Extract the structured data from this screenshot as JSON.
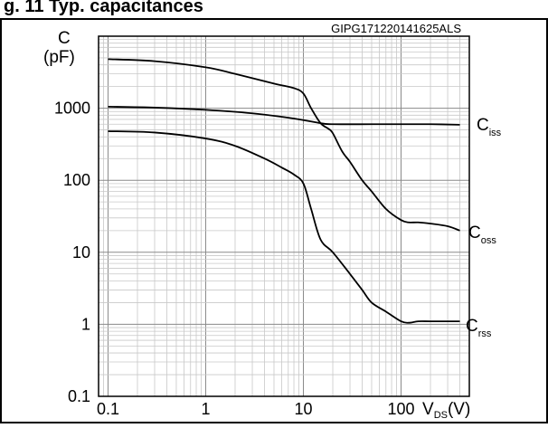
{
  "header": {
    "partial_title": "g. 11 Typ. capacitances"
  },
  "chart_data": {
    "type": "line",
    "code": "GIPG171220141625ALS",
    "y_axis_label_line1": "C",
    "y_axis_label_line2": "(pF)",
    "x_axis_label_main": "V",
    "x_axis_label_sub": "DS",
    "x_axis_label_unit": "(V)",
    "x_scale": "log",
    "y_scale": "log",
    "xlim": [
      0.08,
      500
    ],
    "ylim": [
      0.1,
      10000
    ],
    "grid": true,
    "x_ticks": [
      "0.1",
      "1",
      "10",
      "100"
    ],
    "y_ticks": [
      "0.1",
      "1",
      "10",
      "100",
      "1000"
    ],
    "series": [
      {
        "name": "Ciss",
        "label_main": "C",
        "label_sub": "iss",
        "x": [
          0.1,
          0.3,
          1,
          3,
          8,
          15,
          20,
          50,
          100,
          200,
          400
        ],
        "y": [
          1050,
          1020,
          950,
          850,
          720,
          620,
          600,
          600,
          600,
          600,
          590
        ]
      },
      {
        "name": "Coss",
        "label_main": "C",
        "label_sub": "oss",
        "x": [
          0.1,
          0.3,
          1,
          2,
          5,
          8,
          10,
          12,
          15,
          18,
          20,
          25,
          30,
          40,
          50,
          70,
          100,
          120,
          150,
          200,
          300,
          400
        ],
        "y": [
          4800,
          4500,
          3700,
          3000,
          2200,
          1900,
          1600,
          1000,
          620,
          520,
          450,
          250,
          180,
          100,
          70,
          40,
          28,
          26,
          26,
          25,
          23,
          20
        ]
      },
      {
        "name": "Crss",
        "label_main": "C",
        "label_sub": "rss",
        "x": [
          0.1,
          0.3,
          1,
          2,
          4,
          6,
          8,
          10,
          12,
          15,
          20,
          30,
          40,
          50,
          70,
          100,
          120,
          150,
          200,
          300,
          400
        ],
        "y": [
          480,
          460,
          380,
          300,
          200,
          150,
          120,
          90,
          40,
          15,
          10,
          5,
          3,
          2,
          1.5,
          1.1,
          1.05,
          1.1,
          1.1,
          1.1,
          1.1
        ]
      }
    ]
  }
}
